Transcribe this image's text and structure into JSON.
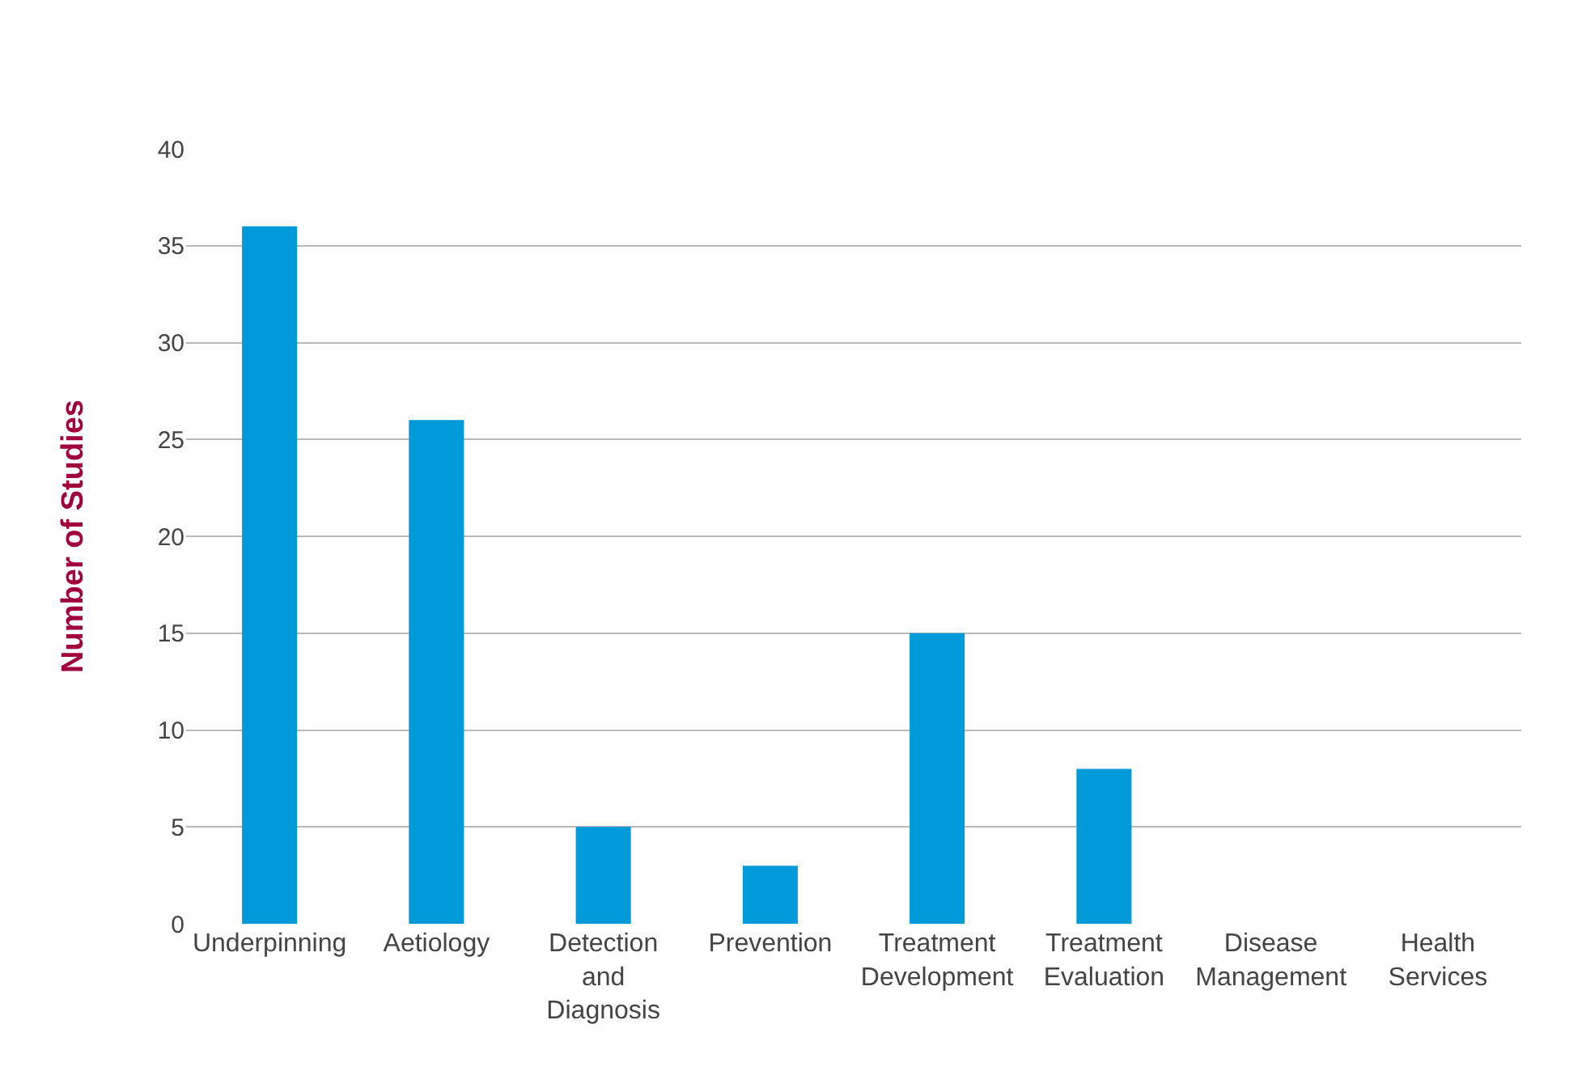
{
  "chart_data": {
    "type": "bar",
    "ylabel": "Number of Studies",
    "categories": [
      "Underpinning",
      "Aetiology",
      "Detection and Diagnosis",
      "Prevention",
      "Treatment Development",
      "Treatment Evaluation",
      "Disease Management",
      "Health Services"
    ],
    "values": [
      36,
      26,
      5,
      3,
      15,
      8,
      0,
      0
    ],
    "color": "#009ad9",
    "ylim": [
      0,
      40
    ],
    "yticks": [
      0,
      5,
      10,
      15,
      20,
      25,
      30,
      35,
      40
    ],
    "grid": "y",
    "legend": false
  }
}
